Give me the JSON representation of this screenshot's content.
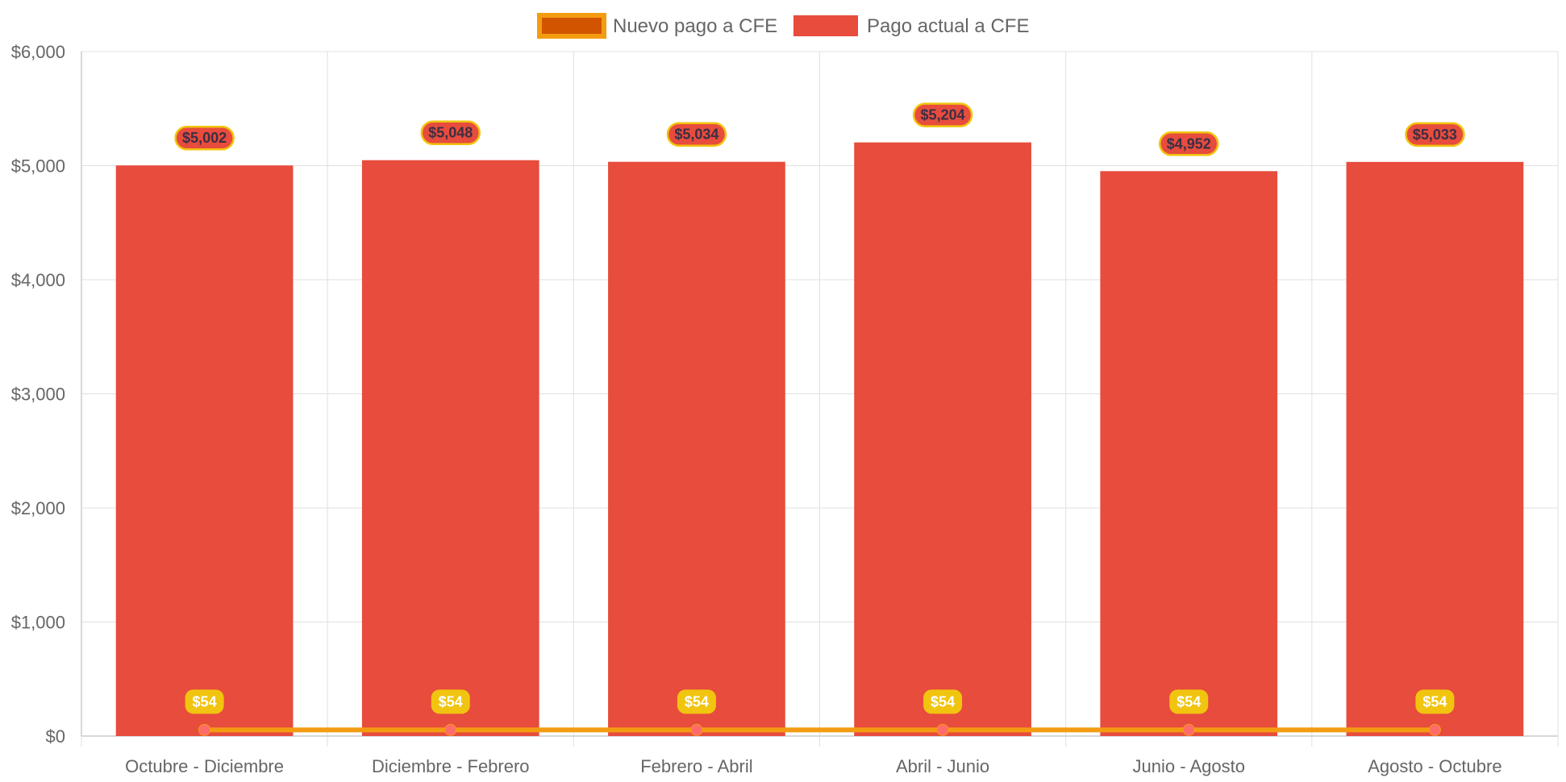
{
  "colors": {
    "bar_fill": "#e74c3c",
    "line_stroke": "#f39c12",
    "legend_line_fill": "#d35400",
    "bar_label_bg": "#e74c3c",
    "bar_label_border": "#f1c40f",
    "line_label_bg": "#f1c40f",
    "point_fill": "#ff6b6b",
    "grid": "#e0e0e0",
    "tick_text": "#666666"
  },
  "chart_data": {
    "type": "bar",
    "categories": [
      "Octubre - Diciembre",
      "Diciembre - Febrero",
      "Febrero - Abril",
      "Abril - Junio",
      "Junio - Agosto",
      "Agosto - Octubre"
    ],
    "series": [
      {
        "name": "Nuevo pago a CFE",
        "type": "line",
        "values": [
          54,
          54,
          54,
          54,
          54,
          54
        ],
        "labels": [
          "$54",
          "$54",
          "$54",
          "$54",
          "$54",
          "$54"
        ]
      },
      {
        "name": "Pago actual a CFE",
        "type": "bar",
        "values": [
          5002,
          5048,
          5034,
          5204,
          4952,
          5033
        ],
        "labels": [
          "$5,002",
          "$5,048",
          "$5,034",
          "$5,204",
          "$4,952",
          "$5,033"
        ]
      }
    ],
    "ylim": [
      0,
      6000
    ],
    "yticks": [
      0,
      1000,
      2000,
      3000,
      4000,
      5000,
      6000
    ],
    "ytick_labels": [
      "$0",
      "$1,000",
      "$2,000",
      "$3,000",
      "$4,000",
      "$5,000",
      "$6,000"
    ],
    "legend_position": "top",
    "grid": true
  }
}
